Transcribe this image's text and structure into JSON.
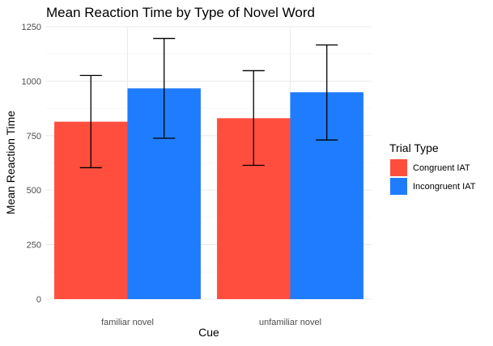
{
  "chart_data": {
    "type": "bar",
    "title": "Mean Reaction Time by Type of Novel Word",
    "xlabel": "Cue",
    "ylabel": "Mean Reaction Time",
    "categories": [
      "familiar novel",
      "unfamiliar novel"
    ],
    "series": [
      {
        "name": "Congruent IAT",
        "color": "#ff4e3e",
        "values": [
          814,
          830
        ],
        "error_low": [
          603,
          614
        ],
        "error_high": [
          1026,
          1048
        ]
      },
      {
        "name": "Incongruent IAT",
        "color": "#1f7cff",
        "values": [
          967,
          949
        ],
        "error_low": [
          738,
          730
        ],
        "error_high": [
          1196,
          1166
        ]
      }
    ],
    "ylim": [
      0,
      1250
    ],
    "yticks": [
      0,
      250,
      500,
      750,
      1000,
      1250
    ],
    "legend_title": "Trial Type",
    "legend_position": "right",
    "grid": true,
    "theme": "minimal"
  }
}
